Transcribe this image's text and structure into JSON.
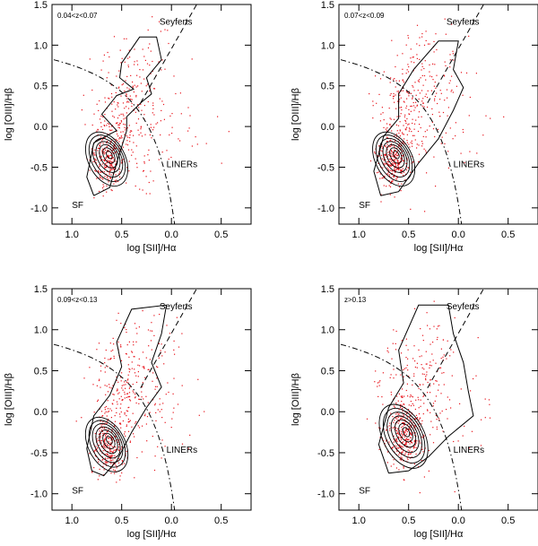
{
  "chart_data": [
    {
      "type": "scatter",
      "panel_label": "0.04<z<0.07",
      "xlabel": "log [SII]/Hα",
      "ylabel": "log [OIII]/Hβ",
      "xlim": [
        -1.2,
        0.8
      ],
      "ylim": [
        -1.2,
        1.5
      ],
      "x_ticks": [
        -1.0,
        -0.5,
        0.0,
        0.5
      ],
      "x_tick_labels": [
        "1.0",
        "0.5",
        "0.0",
        "0.5"
      ],
      "y_ticks": [
        -1.0,
        -0.5,
        0.0,
        0.5,
        1.0,
        1.5
      ],
      "y_tick_labels": [
        "-1.0",
        "-0.5",
        "0.0",
        "0.5",
        "1.0",
        "1.5"
      ],
      "annotations": [
        {
          "text": "Seyferts",
          "x": -0.12,
          "y": 1.25
        },
        {
          "text": "LINERs",
          "x": -0.05,
          "y": -0.5
        },
        {
          "text": "SF",
          "x": -1.0,
          "y": -1.0
        }
      ],
      "cluster": {
        "cx": -0.65,
        "cy": -0.4,
        "sx": 0.08,
        "sy": 0.17
      },
      "outer_contour": [
        [
          -0.78,
          -0.85
        ],
        [
          -0.85,
          -0.62
        ],
        [
          -0.78,
          -0.2
        ],
        [
          -0.55,
          -0.05
        ],
        [
          -0.7,
          0.15
        ],
        [
          -0.55,
          0.38
        ],
        [
          -0.38,
          0.46
        ],
        [
          -0.52,
          0.6
        ],
        [
          -0.5,
          0.78
        ],
        [
          -0.32,
          1.1
        ],
        [
          -0.15,
          1.1
        ],
        [
          -0.1,
          0.82
        ],
        [
          -0.25,
          0.6
        ],
        [
          -0.2,
          0.4
        ],
        [
          -0.3,
          0.3
        ],
        [
          -0.45,
          0.12
        ],
        [
          -0.45,
          -0.05
        ],
        [
          -0.55,
          -0.45
        ],
        [
          -0.62,
          -0.75
        ],
        [
          -0.78,
          -0.85
        ]
      ],
      "n_points": 550,
      "seed": 11
    },
    {
      "type": "scatter",
      "panel_label": "0.07<z<0.09",
      "xlabel": "log [SII]/Hα",
      "ylabel": "log [OIII]/Hβ",
      "xlim": [
        -1.2,
        0.8
      ],
      "ylim": [
        -1.2,
        1.5
      ],
      "x_ticks": [
        -1.0,
        -0.5,
        0.0,
        0.5
      ],
      "x_tick_labels": [
        "1.0",
        "0.5",
        "0.0",
        "0.5"
      ],
      "y_ticks": [
        -1.0,
        -0.5,
        0.0,
        0.5,
        1.0,
        1.5
      ],
      "y_tick_labels": [
        "-1.0",
        "-0.5",
        "0.0",
        "0.5",
        "1.0",
        "1.5"
      ],
      "annotations": [
        {
          "text": "Seyferts",
          "x": -0.12,
          "y": 1.25
        },
        {
          "text": "LINERs",
          "x": -0.05,
          "y": -0.5
        },
        {
          "text": "SF",
          "x": -1.0,
          "y": -1.0
        }
      ],
      "cluster": {
        "cx": -0.65,
        "cy": -0.4,
        "sx": 0.08,
        "sy": 0.17
      },
      "outer_contour": [
        [
          -0.78,
          -0.85
        ],
        [
          -0.85,
          -0.55
        ],
        [
          -0.75,
          -0.12
        ],
        [
          -0.6,
          0.1
        ],
        [
          -0.6,
          0.4
        ],
        [
          -0.45,
          0.7
        ],
        [
          -0.2,
          1.05
        ],
        [
          0.0,
          1.05
        ],
        [
          -0.05,
          0.7
        ],
        [
          0.05,
          0.48
        ],
        [
          -0.05,
          0.2
        ],
        [
          -0.2,
          -0.15
        ],
        [
          -0.4,
          -0.45
        ],
        [
          -0.6,
          -0.8
        ],
        [
          -0.78,
          -0.85
        ]
      ],
      "n_points": 600,
      "seed": 23
    },
    {
      "type": "scatter",
      "panel_label": "0.09<z<0.13",
      "xlabel": "log [SII]/Hα",
      "ylabel": "log [OIII]/Hβ",
      "xlim": [
        -1.2,
        0.8
      ],
      "ylim": [
        -1.2,
        1.5
      ],
      "x_ticks": [
        -1.0,
        -0.5,
        0.0,
        0.5
      ],
      "x_tick_labels": [
        "1.0",
        "0.5",
        "0.0",
        "0.5"
      ],
      "y_ticks": [
        -1.0,
        -0.5,
        0.0,
        0.5,
        1.0,
        1.5
      ],
      "y_tick_labels": [
        "-1.0",
        "-0.5",
        "0.0",
        "0.5",
        "1.0",
        "1.5"
      ],
      "annotations": [
        {
          "text": "Seyferts",
          "x": -0.12,
          "y": 1.25
        },
        {
          "text": "LINERs",
          "x": -0.05,
          "y": -0.5
        },
        {
          "text": "SF",
          "x": -1.0,
          "y": -1.0
        }
      ],
      "cluster": {
        "cx": -0.65,
        "cy": -0.4,
        "sx": 0.08,
        "sy": 0.17
      },
      "outer_contour": [
        [
          -0.8,
          -0.72
        ],
        [
          -0.85,
          -0.45
        ],
        [
          -0.78,
          -0.05
        ],
        [
          -0.62,
          0.2
        ],
        [
          -0.5,
          0.55
        ],
        [
          -0.55,
          0.85
        ],
        [
          -0.4,
          1.25
        ],
        [
          -0.05,
          1.3
        ],
        [
          -0.1,
          0.95
        ],
        [
          -0.2,
          0.6
        ],
        [
          -0.1,
          0.3
        ],
        [
          -0.25,
          0.05
        ],
        [
          -0.4,
          -0.25
        ],
        [
          -0.55,
          -0.6
        ],
        [
          -0.68,
          -0.78
        ],
        [
          -0.8,
          -0.72
        ]
      ],
      "n_points": 550,
      "seed": 37
    },
    {
      "type": "scatter",
      "panel_label": "z>0.13",
      "xlabel": "log [SII]/Hα",
      "ylabel": "log [OIII]/Hβ",
      "xlim": [
        -1.2,
        0.8
      ],
      "ylim": [
        -1.2,
        1.5
      ],
      "x_ticks": [
        -1.0,
        -0.5,
        0.0,
        0.5
      ],
      "x_tick_labels": [
        "1.0",
        "0.5",
        "0.0",
        "0.5"
      ],
      "y_ticks": [
        -1.0,
        -0.5,
        0.0,
        0.5,
        1.0,
        1.5
      ],
      "y_tick_labels": [
        "-1.0",
        "-0.5",
        "0.0",
        "0.5",
        "1.0",
        "1.5"
      ],
      "annotations": [
        {
          "text": "Seyferts",
          "x": -0.12,
          "y": 1.25
        },
        {
          "text": "LINERs",
          "x": -0.05,
          "y": -0.5
        },
        {
          "text": "SF",
          "x": -1.0,
          "y": -1.0
        }
      ],
      "cluster": {
        "cx": -0.55,
        "cy": -0.3,
        "sx": 0.09,
        "sy": 0.2
      },
      "outer_contour": [
        [
          -0.7,
          -0.75
        ],
        [
          -0.8,
          -0.4
        ],
        [
          -0.7,
          0.05
        ],
        [
          -0.55,
          0.35
        ],
        [
          -0.6,
          0.75
        ],
        [
          -0.4,
          1.3
        ],
        [
          -0.1,
          1.3
        ],
        [
          -0.05,
          0.95
        ],
        [
          0.05,
          0.6
        ],
        [
          0.1,
          0.25
        ],
        [
          0.15,
          -0.05
        ],
        [
          -0.1,
          -0.3
        ],
        [
          -0.3,
          -0.55
        ],
        [
          -0.5,
          -0.72
        ],
        [
          -0.7,
          -0.75
        ]
      ],
      "n_points": 550,
      "seed": 53
    }
  ]
}
